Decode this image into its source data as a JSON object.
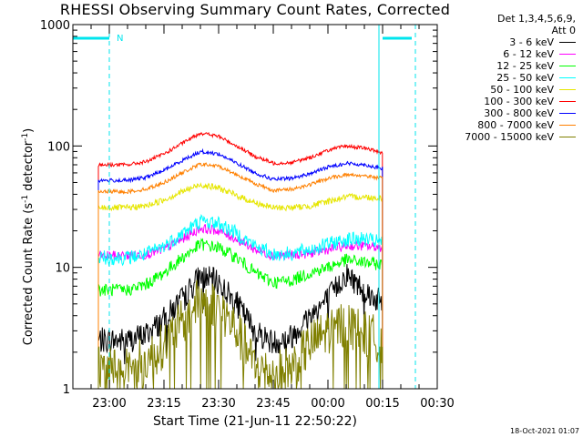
{
  "title": "RHESSI Observing Summary Count Rates, Corrected",
  "detectors": "Det 1,3,4,5,6,9,",
  "attenuator": "Att 0",
  "date_stamp": "18-Oct-2021 01:07",
  "axis": {
    "xlabel": "Start Time (21-Jun-11 22:50:22)",
    "ylabel_main": "Corrected Count Rate (s",
    "ylabel_sup1": "-1",
    "ylabel_mid": " detector",
    "ylabel_sup2": "-1",
    "ylabel_end": ")"
  },
  "colors": {
    "frame": "#000000",
    "marker": "#00e5ee"
  },
  "chart_data": {
    "type": "line",
    "title": "RHESSI Observing Summary Count Rates, Corrected",
    "xlabel": "Start Time (21-Jun-11 22:50:22)",
    "ylabel": "Corrected Count Rate (s-1 detector-1)",
    "yscale": "log",
    "ylim": [
      1,
      1000
    ],
    "xlim": [
      "22:50",
      "00:30"
    ],
    "x_ticks": [
      "23:00",
      "23:15",
      "23:30",
      "23:45",
      "00:00",
      "00:15",
      "00:30"
    ],
    "y_ticks": [
      "1",
      "10",
      "100",
      "1000"
    ],
    "grid": false,
    "legend_position": "outside-right",
    "x": [
      "22:57",
      "23:00",
      "23:05",
      "23:10",
      "23:15",
      "23:20",
      "23:25",
      "23:30",
      "23:35",
      "23:40",
      "23:45",
      "23:50",
      "23:55",
      "00:00",
      "00:05",
      "00:10",
      "00:15"
    ],
    "series": [
      {
        "name": "3 - 6 keV",
        "color": "#000000",
        "values": [
          2.5,
          2.5,
          2.5,
          2.8,
          3.7,
          5.5,
          8.5,
          7.5,
          5,
          3,
          2.4,
          2.7,
          4,
          5.5,
          8.8,
          6.5,
          5
        ]
      },
      {
        "name": "6 - 12 keV",
        "color": "#ff00ff",
        "values": [
          12.5,
          12.5,
          12.5,
          12.8,
          14,
          17,
          21,
          20,
          17,
          14,
          12.5,
          12.6,
          13,
          14,
          15,
          15,
          14.5
        ]
      },
      {
        "name": "12 - 25 keV",
        "color": "#00ff00",
        "values": [
          6.5,
          6.5,
          6.5,
          7.2,
          9,
          12,
          15.5,
          14.5,
          12,
          9,
          7.5,
          7.8,
          9,
          10,
          11.5,
          11,
          10.5
        ]
      },
      {
        "name": "25 - 50 keV",
        "color": "#00ffff",
        "values": [
          12,
          12,
          12,
          12.8,
          15,
          19,
          24,
          23,
          19,
          15,
          12.8,
          13,
          14,
          15.5,
          17,
          17,
          16
        ]
      },
      {
        "name": "50 - 100 keV",
        "color": "#e6e600",
        "values": [
          31,
          31,
          31,
          32,
          36,
          42,
          48,
          45,
          39,
          34,
          31,
          31,
          32,
          35,
          38,
          38,
          37
        ]
      },
      {
        "name": "100 - 300 keV",
        "color": "#ff0000",
        "values": [
          70,
          70,
          70,
          74,
          86,
          105,
          128,
          120,
          100,
          82,
          72,
          73,
          80,
          92,
          100,
          96,
          88
        ]
      },
      {
        "name": "300 - 800 keV",
        "color": "#0000ff",
        "values": [
          52,
          52,
          52,
          55,
          63,
          76,
          90,
          86,
          72,
          60,
          53,
          54,
          59,
          67,
          72,
          70,
          65
        ]
      },
      {
        "name": "800 - 7000 keV",
        "color": "#ff8000",
        "values": [
          42,
          42,
          42,
          44,
          50,
          60,
          71,
          68,
          58,
          49,
          43,
          44,
          48,
          54,
          58,
          57,
          54
        ]
      },
      {
        "name": "7000 - 15000 keV",
        "color": "#808000",
        "values": [
          1.5,
          1.5,
          1.6,
          1.7,
          2.3,
          3.5,
          5.6,
          4.8,
          3,
          1.5,
          1.3,
          1.5,
          2.3,
          3,
          3.5,
          2.8,
          2.5
        ]
      }
    ],
    "annotations": [
      {
        "text": "N",
        "x": "23:01"
      }
    ],
    "markers": {
      "saa_night_intervals": [
        [
          "22:50",
          "23:00"
        ],
        [
          "00:15",
          "00:23"
        ]
      ],
      "vertical_lines": [
        "23:00",
        "00:14",
        "00:24"
      ]
    }
  }
}
